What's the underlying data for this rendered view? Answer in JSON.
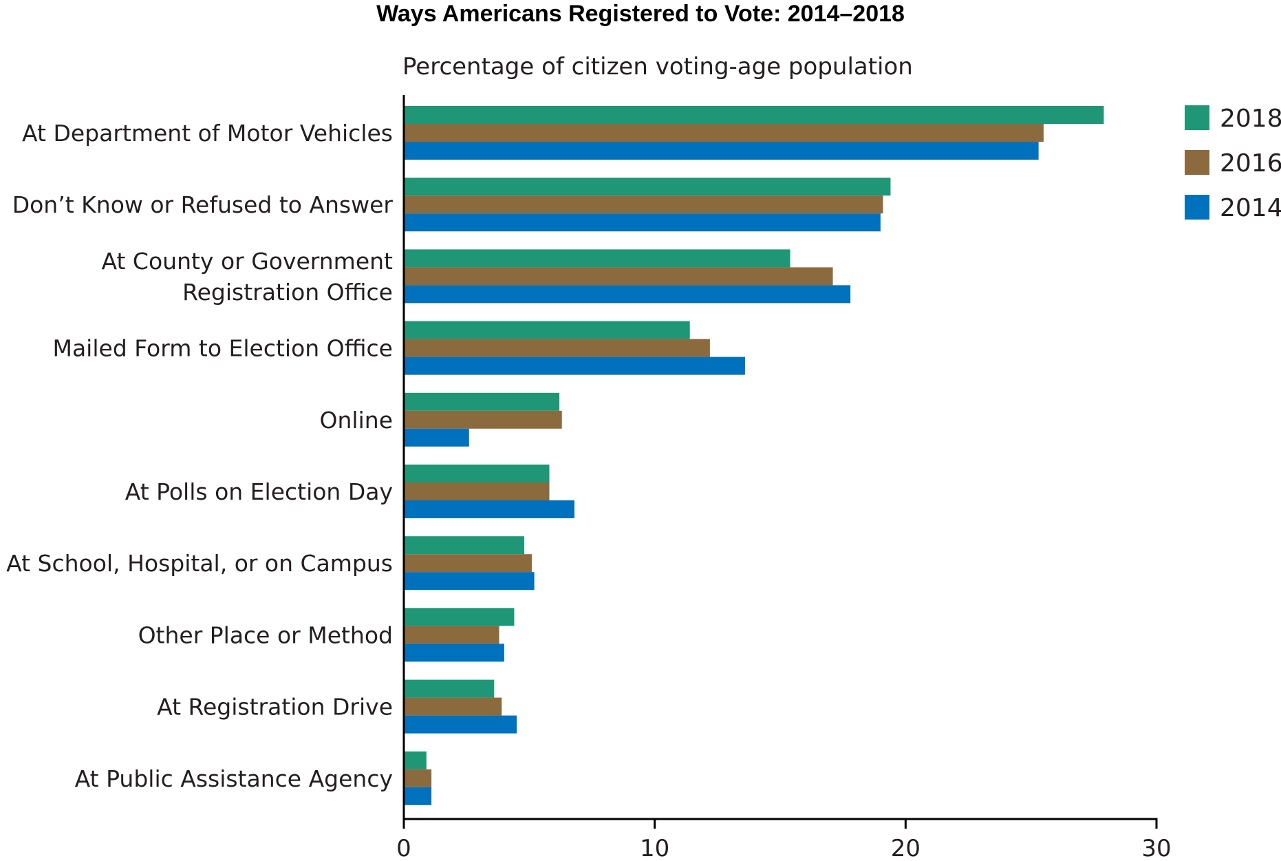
{
  "chart_data": {
    "type": "bar",
    "orientation": "horizontal",
    "title": "Ways Americans Registered to Vote: 2014–2018",
    "subtitle": "Percentage of citizen voting-age population",
    "xlim": [
      0,
      30
    ],
    "xticks": [
      "0",
      "10",
      "20",
      "30"
    ],
    "grid": false,
    "legend_position": "top-right",
    "categories": [
      [
        "At Department of Motor Vehicles"
      ],
      [
        "Don’t Know or Refused to Answer"
      ],
      [
        "At County or Government",
        "Registration Office"
      ],
      [
        "Mailed Form to Election Office"
      ],
      [
        "Online"
      ],
      [
        "At Polls on Election Day"
      ],
      [
        "At School, Hospital, or on Campus"
      ],
      [
        "Other Place or Method"
      ],
      [
        "At Registration Drive"
      ],
      [
        "At Public Assistance Agency"
      ]
    ],
    "series": [
      {
        "name": "2018",
        "color": "#1f9676",
        "values": [
          27.9,
          19.4,
          15.4,
          11.4,
          6.2,
          5.8,
          4.8,
          4.4,
          3.6,
          0.9
        ]
      },
      {
        "name": "2016",
        "color": "#8b6a3e",
        "values": [
          25.5,
          19.1,
          17.1,
          12.2,
          6.3,
          5.8,
          5.1,
          3.8,
          3.9,
          1.1
        ]
      },
      {
        "name": "2014",
        "color": "#0071bc",
        "values": [
          25.3,
          19.0,
          17.8,
          13.6,
          2.6,
          6.8,
          5.2,
          4.0,
          4.5,
          1.1
        ]
      }
    ]
  }
}
